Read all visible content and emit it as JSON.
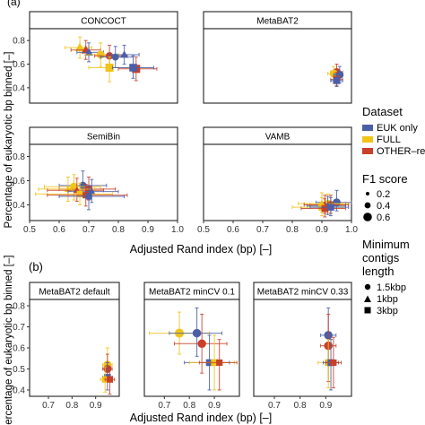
{
  "panel_a_label": "(a)",
  "panel_b_label": "(b)",
  "legend": {
    "dataset_title": "Dataset",
    "dataset_items": [
      {
        "label": "EUK only",
        "color": "#4a5fa8"
      },
      {
        "label": "FULL",
        "color": "#f0c419"
      },
      {
        "label": "OTHER–rem",
        "color": "#c8402a"
      }
    ],
    "f1_title": "F1 score",
    "f1_items": [
      "0.2",
      "0.4",
      "0.6"
    ],
    "contig_title_lines": [
      "Minimum",
      "contigs",
      "length"
    ],
    "contig_items": [
      {
        "label": "1.5kbp",
        "shape": "circle"
      },
      {
        "label": "1kbp",
        "shape": "triangle"
      },
      {
        "label": "3kbp",
        "shape": "square"
      }
    ]
  },
  "chart_data": [
    {
      "panel": "a",
      "type": "scatter",
      "xlabel": "Adjusted Rand index (bp) [–]",
      "ylabel": "Percentage of eukaryotic bp binned [–]",
      "xlim": [
        0.5,
        1.0
      ],
      "ylim": [
        0.27,
        0.9
      ],
      "xticks": [
        "0.5",
        "0.6",
        "0.7",
        "0.8",
        "0.9",
        "1.0"
      ],
      "yticks": [
        "0.4",
        "0.6",
        "0.8"
      ],
      "grid": false,
      "facets": [
        {
          "title": "CONCOCT",
          "points": [
            {
              "dataset": "FULL",
              "shape": "triangle",
              "f1": 0.5,
              "x": 0.67,
              "y": 0.74,
              "xerr": [
                0.62,
                0.71
              ],
              "yerr": [
                0.65,
                0.83
              ]
            },
            {
              "dataset": "OTHER–rem",
              "shape": "triangle",
              "f1": 0.45,
              "x": 0.69,
              "y": 0.72,
              "xerr": [
                0.64,
                0.74
              ],
              "yerr": [
                0.64,
                0.8
              ]
            },
            {
              "dataset": "EUK only",
              "shape": "triangle",
              "f1": 0.4,
              "x": 0.7,
              "y": 0.7,
              "xerr": [
                0.66,
                0.75
              ],
              "yerr": [
                0.62,
                0.78
              ]
            },
            {
              "dataset": "FULL",
              "shape": "circle",
              "f1": 0.45,
              "x": 0.74,
              "y": 0.68,
              "xerr": [
                0.69,
                0.8
              ],
              "yerr": [
                0.58,
                0.78
              ]
            },
            {
              "dataset": "OTHER–rem",
              "shape": "circle",
              "f1": 0.4,
              "x": 0.77,
              "y": 0.67,
              "xerr": [
                0.72,
                0.83
              ],
              "yerr": [
                0.58,
                0.76
              ]
            },
            {
              "dataset": "EUK only",
              "shape": "circle",
              "f1": 0.35,
              "x": 0.79,
              "y": 0.66,
              "xerr": [
                0.74,
                0.85
              ],
              "yerr": [
                0.57,
                0.75
              ]
            },
            {
              "dataset": "FULL",
              "shape": "square",
              "f1": 0.55,
              "x": 0.77,
              "y": 0.57,
              "xerr": [
                0.7,
                0.84
              ],
              "yerr": [
                0.45,
                0.66
              ]
            },
            {
              "dataset": "OTHER–rem",
              "shape": "square",
              "f1": 0.55,
              "x": 0.86,
              "y": 0.56,
              "xerr": [
                0.8,
                0.93
              ],
              "yerr": [
                0.46,
                0.66
              ]
            },
            {
              "dataset": "EUK only",
              "shape": "square",
              "f1": 0.5,
              "x": 0.85,
              "y": 0.57,
              "xerr": [
                0.78,
                0.92
              ],
              "yerr": [
                0.48,
                0.67
              ]
            },
            {
              "dataset": "EUK only",
              "shape": "triangle",
              "f1": 0.35,
              "x": 0.82,
              "y": 0.68,
              "xerr": [
                0.77,
                0.87
              ],
              "yerr": [
                0.6,
                0.76
              ]
            }
          ]
        },
        {
          "title": "MetaBAT2",
          "points": [
            {
              "dataset": "OTHER–rem",
              "shape": "circle",
              "f1": 0.5,
              "x": 0.95,
              "y": 0.53,
              "xerr": [
                0.93,
                0.97
              ],
              "yerr": [
                0.45,
                0.6
              ]
            },
            {
              "dataset": "FULL",
              "shape": "circle",
              "f1": 0.45,
              "x": 0.94,
              "y": 0.52,
              "xerr": [
                0.92,
                0.96
              ],
              "yerr": [
                0.44,
                0.58
              ]
            },
            {
              "dataset": "EUK only",
              "shape": "circle",
              "f1": 0.45,
              "x": 0.96,
              "y": 0.51,
              "xerr": [
                0.94,
                0.97
              ],
              "yerr": [
                0.44,
                0.58
              ]
            },
            {
              "dataset": "OTHER–rem",
              "shape": "square",
              "f1": 0.45,
              "x": 0.95,
              "y": 0.47,
              "xerr": [
                0.93,
                0.97
              ],
              "yerr": [
                0.42,
                0.53
              ]
            },
            {
              "dataset": "EUK only",
              "shape": "square",
              "f1": 0.4,
              "x": 0.95,
              "y": 0.46,
              "xerr": [
                0.93,
                0.97
              ],
              "yerr": [
                0.41,
                0.52
              ]
            }
          ]
        },
        {
          "title": "SemiBin",
          "points": [
            {
              "dataset": "EUK only",
              "shape": "circle",
              "f1": 0.4,
              "x": 0.68,
              "y": 0.56,
              "xerr": [
                0.6,
                0.76
              ],
              "yerr": [
                0.47,
                0.68
              ]
            },
            {
              "dataset": "FULL",
              "shape": "circle",
              "f1": 0.45,
              "x": 0.65,
              "y": 0.55,
              "xerr": [
                0.55,
                0.74
              ],
              "yerr": [
                0.44,
                0.65
              ]
            },
            {
              "dataset": "OTHER–rem",
              "shape": "circle",
              "f1": 0.45,
              "x": 0.7,
              "y": 0.53,
              "xerr": [
                0.6,
                0.79
              ],
              "yerr": [
                0.44,
                0.63
              ]
            },
            {
              "dataset": "FULL",
              "shape": "triangle",
              "f1": 0.3,
              "x": 0.63,
              "y": 0.53,
              "xerr": [
                0.53,
                0.72
              ],
              "yerr": [
                0.43,
                0.63
              ]
            },
            {
              "dataset": "OTHER–rem",
              "shape": "triangle",
              "f1": 0.3,
              "x": 0.66,
              "y": 0.52,
              "xerr": [
                0.56,
                0.75
              ],
              "yerr": [
                0.43,
                0.62
              ]
            },
            {
              "dataset": "EUK only",
              "shape": "triangle",
              "f1": 0.3,
              "x": 0.71,
              "y": 0.51,
              "xerr": [
                0.63,
                0.8
              ],
              "yerr": [
                0.42,
                0.61
              ]
            },
            {
              "dataset": "FULL",
              "shape": "square",
              "f1": 0.35,
              "x": 0.67,
              "y": 0.49,
              "xerr": [
                0.52,
                0.78
              ],
              "yerr": [
                0.4,
                0.58
              ]
            },
            {
              "dataset": "OTHER–rem",
              "shape": "square",
              "f1": 0.35,
              "x": 0.69,
              "y": 0.48,
              "xerr": [
                0.56,
                0.83
              ],
              "yerr": [
                0.39,
                0.57
              ]
            },
            {
              "dataset": "EUK only",
              "shape": "square",
              "f1": 0.35,
              "x": 0.7,
              "y": 0.47,
              "xerr": [
                0.6,
                0.82
              ],
              "yerr": [
                0.36,
                0.56
              ]
            }
          ]
        },
        {
          "title": "VAMB",
          "points": [
            {
              "dataset": "EUK only",
              "shape": "circle",
              "f1": 0.45,
              "x": 0.95,
              "y": 0.42,
              "xerr": [
                0.88,
                1.0
              ],
              "yerr": [
                0.35,
                0.52
              ]
            },
            {
              "dataset": "FULL",
              "shape": "circle",
              "f1": 0.4,
              "x": 0.92,
              "y": 0.41,
              "xerr": [
                0.84,
                0.99
              ],
              "yerr": [
                0.34,
                0.49
              ]
            },
            {
              "dataset": "OTHER–rem",
              "shape": "circle",
              "f1": 0.4,
              "x": 0.93,
              "y": 0.4,
              "xerr": [
                0.86,
                0.99
              ],
              "yerr": [
                0.33,
                0.48
              ]
            },
            {
              "dataset": "FULL",
              "shape": "triangle",
              "f1": 0.35,
              "x": 0.9,
              "y": 0.41,
              "xerr": [
                0.82,
                0.97
              ],
              "yerr": [
                0.34,
                0.5
              ]
            },
            {
              "dataset": "OTHER–rem",
              "shape": "triangle",
              "f1": 0.35,
              "x": 0.91,
              "y": 0.4,
              "xerr": [
                0.84,
                0.98
              ],
              "yerr": [
                0.33,
                0.48
              ]
            },
            {
              "dataset": "EUK only",
              "shape": "triangle",
              "f1": 0.35,
              "x": 0.92,
              "y": 0.39,
              "xerr": [
                0.85,
                0.98
              ],
              "yerr": [
                0.32,
                0.47
              ]
            },
            {
              "dataset": "FULL",
              "shape": "square",
              "f1": 0.4,
              "x": 0.9,
              "y": 0.38,
              "xerr": [
                0.8,
                0.97
              ],
              "yerr": [
                0.31,
                0.46
              ]
            },
            {
              "dataset": "OTHER–rem",
              "shape": "square",
              "f1": 0.4,
              "x": 0.91,
              "y": 0.37,
              "xerr": [
                0.83,
                0.98
              ],
              "yerr": [
                0.3,
                0.45
              ]
            },
            {
              "dataset": "EUK only",
              "shape": "square",
              "f1": 0.4,
              "x": 0.93,
              "y": 0.38,
              "xerr": [
                0.86,
                0.99
              ],
              "yerr": [
                0.31,
                0.46
              ]
            }
          ]
        }
      ]
    },
    {
      "panel": "b",
      "type": "scatter",
      "xlabel": "Adjusted Rand index (bp) [–]",
      "ylabel": "Percentage of eukaryotic bp binned [–]",
      "xlim": [
        0.62,
        1.0
      ],
      "ylim": [
        0.37,
        0.83
      ],
      "xticks": [
        "0.7",
        "0.8",
        "0.9"
      ],
      "yticks": [
        "0.4",
        "0.5",
        "0.6",
        "0.7",
        "0.8"
      ],
      "grid": false,
      "facets": [
        {
          "title": "MetaBAT2 default",
          "points": [
            {
              "dataset": "FULL",
              "shape": "circle",
              "f1": 0.45,
              "x": 0.95,
              "y": 0.52,
              "xerr": [
                0.93,
                0.97
              ],
              "yerr": [
                0.46,
                0.6
              ]
            },
            {
              "dataset": "OTHER–rem",
              "shape": "circle",
              "f1": 0.45,
              "x": 0.95,
              "y": 0.5,
              "xerr": [
                0.93,
                0.97
              ],
              "yerr": [
                0.44,
                0.57
              ]
            },
            {
              "dataset": "EUK only",
              "shape": "square",
              "f1": 0.4,
              "x": 0.95,
              "y": 0.46,
              "xerr": [
                0.93,
                0.97
              ],
              "yerr": [
                0.4,
                0.53
              ]
            },
            {
              "dataset": "FULL",
              "shape": "square",
              "f1": 0.35,
              "x": 0.94,
              "y": 0.45,
              "xerr": [
                0.92,
                0.96
              ],
              "yerr": [
                0.39,
                0.51
              ]
            },
            {
              "dataset": "OTHER–rem",
              "shape": "square",
              "f1": 0.35,
              "x": 0.96,
              "y": 0.45,
              "xerr": [
                0.94,
                0.98
              ],
              "yerr": [
                0.38,
                0.51
              ]
            }
          ]
        },
        {
          "title": "MetaBAT2 minCV 0.1",
          "points": [
            {
              "dataset": "FULL",
              "shape": "circle",
              "f1": 0.55,
              "x": 0.76,
              "y": 0.67,
              "xerr": [
                0.64,
                0.88
              ],
              "yerr": [
                0.57,
                0.77
              ]
            },
            {
              "dataset": "EUK only",
              "shape": "circle",
              "f1": 0.5,
              "x": 0.83,
              "y": 0.67,
              "xerr": [
                0.72,
                0.93
              ],
              "yerr": [
                0.56,
                0.79
              ]
            },
            {
              "dataset": "OTHER–rem",
              "shape": "circle",
              "f1": 0.5,
              "x": 0.85,
              "y": 0.62,
              "xerr": [
                0.74,
                0.95
              ],
              "yerr": [
                0.48,
                0.76
              ]
            },
            {
              "dataset": "EUK only",
              "shape": "square",
              "f1": 0.4,
              "x": 0.88,
              "y": 0.53,
              "xerr": [
                0.78,
                0.96
              ],
              "yerr": [
                0.4,
                0.66
              ]
            },
            {
              "dataset": "FULL",
              "shape": "square",
              "f1": 0.4,
              "x": 0.9,
              "y": 0.53,
              "xerr": [
                0.8,
                0.98
              ],
              "yerr": [
                0.4,
                0.66
              ]
            },
            {
              "dataset": "OTHER–rem",
              "shape": "square",
              "f1": 0.35,
              "x": 0.92,
              "y": 0.53,
              "xerr": [
                0.84,
                0.99
              ],
              "yerr": [
                0.4,
                0.64
              ]
            }
          ]
        },
        {
          "title": "MetaBAT2 minCV 0.33",
          "points": [
            {
              "dataset": "EUK only",
              "shape": "circle",
              "f1": 0.5,
              "x": 0.91,
              "y": 0.66,
              "xerr": [
                0.88,
                0.94
              ],
              "yerr": [
                0.52,
                0.79
              ]
            },
            {
              "dataset": "OTHER–rem",
              "shape": "circle",
              "f1": 0.5,
              "x": 0.91,
              "y": 0.61,
              "xerr": [
                0.88,
                0.94
              ],
              "yerr": [
                0.44,
                0.76
              ]
            },
            {
              "dataset": "FULL",
              "shape": "square",
              "f1": 0.4,
              "x": 0.91,
              "y": 0.53,
              "xerr": [
                0.87,
                0.95
              ],
              "yerr": [
                0.41,
                0.64
              ]
            },
            {
              "dataset": "EUK only",
              "shape": "square",
              "f1": 0.4,
              "x": 0.92,
              "y": 0.53,
              "xerr": [
                0.89,
                0.95
              ],
              "yerr": [
                0.4,
                0.64
              ]
            },
            {
              "dataset": "OTHER–rem",
              "shape": "square",
              "f1": 0.35,
              "x": 0.93,
              "y": 0.53,
              "xerr": [
                0.9,
                0.96
              ],
              "yerr": [
                0.41,
                0.65
              ]
            }
          ]
        }
      ]
    }
  ]
}
